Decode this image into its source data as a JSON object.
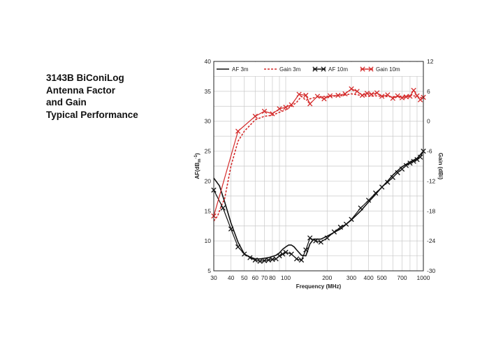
{
  "title_lines": [
    "3143B BiConiLog",
    "Antenna Factor",
    "and Gain",
    "Typical Performance"
  ],
  "chart_data": {
    "type": "line",
    "title": "3143B BiConiLog Antenna Factor and Gain Typical Performance",
    "xlabel": "Frequency (MHz)",
    "ylabel": "AF(dB/m)",
    "ylabel_main": "AF(dB",
    "ylabel_sub": "m",
    "ylabel_sup": "-1",
    "ylabel_close": ")",
    "y2label": "Gain (dBi)",
    "xscale": "log",
    "xlim": [
      30,
      1000
    ],
    "ylim": [
      5,
      40
    ],
    "y2lim": [
      -30,
      12
    ],
    "grid": true,
    "legend_position": "top",
    "x_ticks": [
      30,
      40,
      50,
      60,
      70,
      80,
      100,
      200,
      300,
      400,
      500,
      700,
      1000
    ],
    "x_tick_labels": [
      "30",
      "40",
      "50",
      "60",
      "70",
      "80",
      "100",
      "200",
      "300",
      "400",
      "500",
      "700",
      "1000"
    ],
    "y_ticks": [
      5,
      10,
      15,
      20,
      25,
      30,
      35,
      40
    ],
    "y_tick_labels": [
      "5",
      "10",
      "15",
      "20",
      "25",
      "30",
      "35",
      "40"
    ],
    "y2_ticks": [
      -30,
      -24,
      -18,
      -12,
      -6,
      0,
      6,
      12
    ],
    "y2_tick_labels": [
      "-30",
      "-24",
      "-18",
      "-12",
      "-6",
      "0",
      "6",
      "12"
    ],
    "series": [
      {
        "name": "AF 3m",
        "axis": "left",
        "color": "#111111",
        "dashed": false,
        "marker": false,
        "x": [
          30,
          33,
          36,
          40,
          45,
          50,
          55,
          60,
          65,
          70,
          75,
          80,
          85,
          90,
          95,
          100,
          105,
          110,
          115,
          120,
          130,
          140,
          150,
          160,
          180,
          200,
          250,
          300,
          350,
          400,
          450,
          500,
          550,
          600,
          700,
          800,
          900,
          1000
        ],
        "y": [
          20.5,
          19.2,
          16.5,
          13.0,
          9.8,
          7.8,
          7.3,
          7.0,
          7.0,
          7.1,
          7.2,
          7.4,
          7.6,
          8.0,
          8.6,
          9.0,
          9.3,
          9.3,
          9.0,
          8.5,
          7.6,
          7.5,
          9.5,
          10.3,
          10.3,
          10.8,
          12.0,
          13.5,
          15.0,
          16.5,
          17.8,
          19.0,
          20.0,
          21.0,
          22.4,
          23.2,
          23.8,
          25.0
        ]
      },
      {
        "name": "Gain 3m",
        "axis": "right",
        "color": "#d42a2a",
        "dashed": true,
        "marker": false,
        "x": [
          30,
          32,
          34,
          36,
          40,
          45,
          50,
          55,
          60,
          70,
          80,
          90,
          100,
          110,
          120,
          130,
          140,
          150,
          170,
          200,
          250,
          300,
          350,
          400,
          450,
          500,
          600,
          700,
          800,
          900,
          1000
        ],
        "y": [
          -20.0,
          -19.0,
          -17.0,
          -15.5,
          -9.0,
          -4.0,
          -2.0,
          -0.8,
          0.3,
          1.0,
          1.2,
          1.8,
          2.3,
          3.0,
          3.8,
          5.0,
          4.2,
          4.5,
          4.9,
          5.0,
          5.1,
          5.5,
          5.2,
          5.0,
          5.1,
          5.0,
          4.9,
          5.0,
          5.2,
          5.0,
          4.6
        ]
      },
      {
        "name": "AF 10m",
        "axis": "left",
        "color": "#111111",
        "dashed": false,
        "marker": true,
        "x": [
          30,
          35,
          40,
          45,
          50,
          55,
          60,
          65,
          70,
          75,
          80,
          85,
          90,
          95,
          100,
          110,
          120,
          130,
          140,
          150,
          165,
          180,
          200,
          225,
          250,
          275,
          300,
          350,
          400,
          450,
          500,
          550,
          600,
          650,
          700,
          750,
          800,
          850,
          900,
          950,
          1000
        ],
        "y": [
          18.5,
          15.5,
          12.0,
          9.0,
          7.8,
          7.2,
          6.8,
          6.6,
          6.7,
          6.8,
          6.9,
          7.0,
          7.5,
          7.8,
          8.1,
          7.8,
          7.0,
          6.8,
          8.5,
          10.5,
          10.0,
          9.8,
          10.5,
          11.5,
          12.3,
          12.8,
          13.6,
          15.5,
          16.8,
          18.0,
          19.0,
          19.8,
          20.6,
          21.4,
          22.0,
          22.6,
          23.0,
          23.3,
          23.6,
          24.0,
          25.0
        ]
      },
      {
        "name": "Gain 10m",
        "axis": "right",
        "color": "#d42a2a",
        "dashed": false,
        "marker": true,
        "x": [
          30,
          45,
          60,
          70,
          80,
          90,
          100,
          110,
          125,
          140,
          150,
          170,
          190,
          210,
          240,
          270,
          300,
          330,
          360,
          390,
          420,
          460,
          500,
          550,
          600,
          650,
          700,
          750,
          800,
          850,
          900,
          950,
          1000
        ],
        "y": [
          -19.0,
          -2.0,
          1.0,
          2.0,
          1.5,
          2.5,
          2.8,
          3.3,
          5.4,
          5.2,
          3.5,
          5.0,
          4.5,
          5.1,
          5.2,
          5.5,
          6.5,
          6.0,
          5.2,
          5.6,
          5.4,
          5.7,
          5.0,
          5.3,
          4.6,
          5.1,
          4.7,
          4.9,
          5.0,
          6.2,
          5.1,
          4.3,
          4.8
        ]
      }
    ]
  }
}
